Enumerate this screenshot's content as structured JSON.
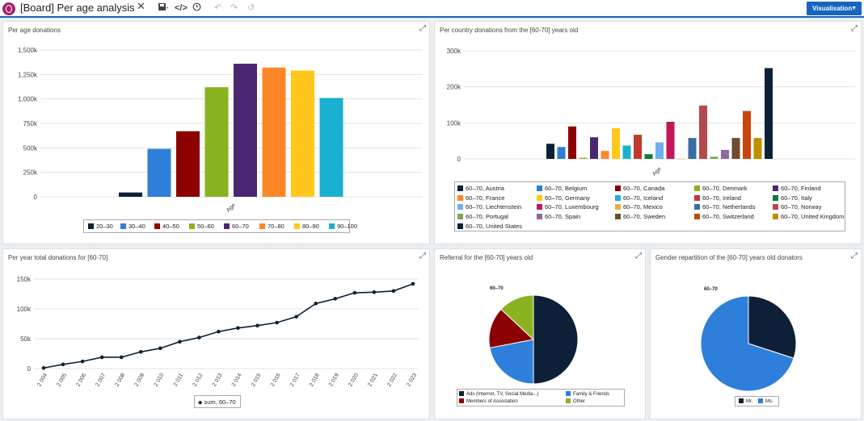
{
  "app": {
    "title": "[Board] Per age analysis",
    "visualisation_label": "Visualisation",
    "icons": [
      "close-icon",
      "save-icon",
      "code-icon",
      "settings-icon",
      "undo-icon",
      "redo-icon",
      "reset-icon"
    ]
  },
  "panels": {
    "per_age": {
      "title": "Per age donations",
      "chart_data": {
        "type": "bar",
        "categories": [
          "Age"
        ],
        "series": [
          {
            "name": "20–30",
            "values": [
              44000
            ],
            "color": "#0d2038"
          },
          {
            "name": "30–40",
            "values": [
              490000
            ],
            "color": "#2e7fd9"
          },
          {
            "name": "40–50",
            "values": [
              670000
            ],
            "color": "#8b0000"
          },
          {
            "name": "50–60",
            "values": [
              1120000
            ],
            "color": "#8ab21e"
          },
          {
            "name": "60–70",
            "values": [
              1360000
            ],
            "color": "#4a2770"
          },
          {
            "name": "70–80",
            "values": [
              1320000
            ],
            "color": "#ff8626"
          },
          {
            "name": "80–90",
            "values": [
              1290000
            ],
            "color": "#ffc81a"
          },
          {
            "name": "90–100",
            "values": [
              1010000
            ],
            "color": "#1ab0d2"
          }
        ],
        "y_ticks": [
          "0",
          "250k",
          "500k",
          "750k",
          "1,000k",
          "1,250k",
          "1,500k"
        ],
        "ylim": [
          0,
          1500000
        ],
        "xlabel": "Age"
      }
    },
    "per_country": {
      "title": "Per country donations from the [60-70] years old",
      "chart_data": {
        "type": "bar",
        "categories": [
          "Age"
        ],
        "series": [
          {
            "name": "60–70, Austria",
            "values": [
              42000
            ],
            "color": "#0d2038"
          },
          {
            "name": "60–70, Belgium",
            "values": [
              33000
            ],
            "color": "#2e7fd9"
          },
          {
            "name": "60–70, Canada",
            "values": [
              90000
            ],
            "color": "#8b0000"
          },
          {
            "name": "60–70, Denmark",
            "values": [
              3000
            ],
            "color": "#8ab21e"
          },
          {
            "name": "60–70, Finland",
            "values": [
              60000
            ],
            "color": "#4a2770"
          },
          {
            "name": "60–70, France",
            "values": [
              22000
            ],
            "color": "#ff8626"
          },
          {
            "name": "60–70, Germany",
            "values": [
              85000
            ],
            "color": "#ffc81a"
          },
          {
            "name": "60–70, Iceland",
            "values": [
              37000
            ],
            "color": "#1ab0d2"
          },
          {
            "name": "60–70, Ireland",
            "values": [
              67000
            ],
            "color": "#c0392b"
          },
          {
            "name": "60–70, Italy",
            "values": [
              13000
            ],
            "color": "#0e7a3d"
          },
          {
            "name": "60–70, Liechtenstein",
            "values": [
              46000
            ],
            "color": "#6cb0ef"
          },
          {
            "name": "60–70, Luxembourg",
            "values": [
              103000
            ],
            "color": "#c2185b"
          },
          {
            "name": "60–70, Mexico",
            "values": [
              0
            ],
            "color": "#e3b33a"
          },
          {
            "name": "60–70, Netherlands",
            "values": [
              58000
            ],
            "color": "#3a6ea5"
          },
          {
            "name": "60–70, Norway",
            "values": [
              148000
            ],
            "color": "#b5494c"
          },
          {
            "name": "60–70, Portugal",
            "values": [
              6000
            ],
            "color": "#7fa857"
          },
          {
            "name": "60–70, Spain",
            "values": [
              25000
            ],
            "color": "#8a6aa3"
          },
          {
            "name": "60–70, Sweden",
            "values": [
              58000
            ],
            "color": "#6e4a2f"
          },
          {
            "name": "60–70, Switzerland",
            "values": [
              133000
            ],
            "color": "#c8450c"
          },
          {
            "name": "60–70, United Kingdom",
            "values": [
              58000
            ],
            "color": "#bf8f00"
          },
          {
            "name": "60–70, United States",
            "values": [
              252000
            ],
            "color": "#0d2038"
          }
        ],
        "y_ticks": [
          "0",
          "100k",
          "200k",
          "300k"
        ],
        "ylim": [
          0,
          300000
        ],
        "xlabel": "Age"
      }
    },
    "per_year": {
      "title": "Per year total donations for [60-70]",
      "chart_data": {
        "type": "line",
        "x": [
          "2 004",
          "2 005",
          "2 006",
          "2 007",
          "2 008",
          "2 009",
          "2 010",
          "2 011",
          "2 012",
          "2 013",
          "2 014",
          "2 015",
          "2 016",
          "2 017",
          "2 018",
          "2 019",
          "2 020",
          "2 021",
          "2 022",
          "2 023"
        ],
        "series": [
          {
            "name": "sum, 60–70",
            "values": [
              1000,
              7000,
              12000,
              19000,
              19000,
              28000,
              34000,
              45000,
              52000,
              62000,
              68000,
              72000,
              77000,
              87000,
              109000,
              117000,
              127000,
              128000,
              130000,
              142000
            ],
            "color": "#0d2038"
          }
        ],
        "y_ticks": [
          "0",
          "50k",
          "100k",
          "150k"
        ],
        "ylim": [
          0,
          150000
        ]
      }
    },
    "referral": {
      "title": "Referral for the [60-70] years old",
      "chart_data": {
        "type": "pie",
        "label": "60–70",
        "slices": [
          {
            "name": "Ads (Internet, TV, Social Media...)",
            "value": 50,
            "color": "#0d2038"
          },
          {
            "name": "Family & Friends",
            "value": 22,
            "color": "#2e7fd9"
          },
          {
            "name": "Members of Association",
            "value": 15,
            "color": "#8b0000"
          },
          {
            "name": "Other",
            "value": 13,
            "color": "#8ab21e"
          }
        ]
      }
    },
    "gender": {
      "title": "Gender repartition of the [60-70] years old donators",
      "chart_data": {
        "type": "pie",
        "label": "60–70",
        "slices": [
          {
            "name": "Mr.",
            "value": 30,
            "color": "#0d2038"
          },
          {
            "name": "Ms.",
            "value": 70,
            "color": "#2e7fd9"
          }
        ]
      }
    }
  }
}
